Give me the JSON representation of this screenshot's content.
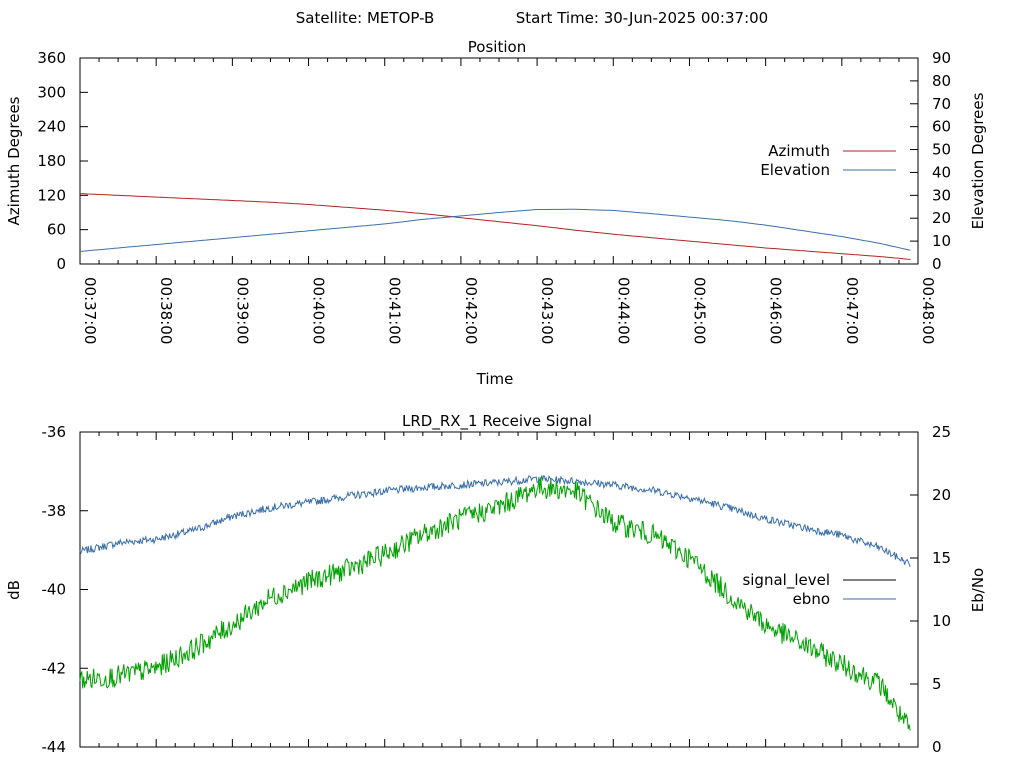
{
  "header": {
    "satellite": "Satellite: METOP-B",
    "start_time": "Start Time: 30-Jun-2025 00:37:00"
  },
  "chart_data": [
    {
      "type": "line",
      "title": "Position",
      "xlabel": "Time",
      "ylabel": "Azimuth Degrees",
      "y2label": "Elevation Degrees",
      "x_ticks": [
        "00:37:00",
        "00:38:00",
        "00:39:00",
        "00:40:00",
        "00:41:00",
        "00:42:00",
        "00:43:00",
        "00:44:00",
        "00:45:00",
        "00:46:00",
        "00:47:00",
        "00:48:00"
      ],
      "xlim_minutes": [
        0,
        11
      ],
      "ylim": [
        0,
        360
      ],
      "y_ticks": [
        "0",
        "60",
        "120",
        "180",
        "240",
        "300",
        "360"
      ],
      "y2lim": [
        0,
        90
      ],
      "y2_ticks": [
        "0",
        "10",
        "20",
        "30",
        "40",
        "50",
        "60",
        "70",
        "80",
        "90"
      ],
      "legend_position": "right",
      "series": [
        {
          "name": "Azimuth",
          "axis": "y",
          "color": "#b22222",
          "x_minutes": [
            0,
            0.5,
            1,
            1.5,
            2,
            2.5,
            3,
            3.5,
            4,
            4.5,
            5,
            5.5,
            6,
            6.5,
            7,
            7.5,
            8,
            8.5,
            9,
            9.5,
            10,
            10.5,
            10.9
          ],
          "values": [
            123,
            120,
            117,
            114,
            111,
            108,
            104,
            99,
            94,
            88,
            81,
            74,
            67,
            59,
            52,
            46,
            40,
            34,
            28,
            23,
            18,
            13,
            8
          ]
        },
        {
          "name": "Elevation",
          "axis": "y2",
          "color": "#3a6fa8",
          "x_minutes": [
            0,
            0.5,
            1,
            1.5,
            2,
            2.5,
            3,
            3.5,
            4,
            4.5,
            5,
            5.5,
            6,
            6.5,
            7,
            7.5,
            8,
            8.5,
            9,
            9.5,
            10,
            10.5,
            10.9
          ],
          "values": [
            5.5,
            7,
            8.5,
            10,
            11.5,
            13,
            14.5,
            16,
            17.5,
            19.5,
            21,
            22.5,
            23.8,
            23.9,
            23.4,
            22,
            20.5,
            19,
            17,
            14.5,
            12,
            9,
            6
          ]
        }
      ]
    },
    {
      "type": "line",
      "title": "LRD_RX_1 Receive Signal",
      "ylabel": "dB",
      "y2label": "Eb/No",
      "xlim_minutes": [
        0,
        11
      ],
      "ylim": [
        -44,
        -36
      ],
      "y_ticks": [
        "-36",
        "-38",
        "-40",
        "-42",
        "-44"
      ],
      "y2lim": [
        0,
        25
      ],
      "y2_ticks": [
        "0",
        "5",
        "10",
        "15",
        "20",
        "25"
      ],
      "legend_position": "right",
      "series": [
        {
          "name": "signal_level",
          "axis": "y",
          "color": "#00a000",
          "x_minutes": [
            0,
            0.5,
            1,
            1.5,
            2,
            2.5,
            3,
            3.5,
            4,
            4.5,
            5,
            5.5,
            6,
            6.5,
            7,
            7.5,
            8,
            8.5,
            9,
            9.5,
            10,
            10.5,
            10.9
          ],
          "values": [
            -42.3,
            -42.2,
            -42.0,
            -41.5,
            -40.9,
            -40.2,
            -39.8,
            -39.5,
            -39.1,
            -38.6,
            -38.2,
            -37.9,
            -37.4,
            -37.5,
            -38.3,
            -38.6,
            -39.2,
            -40.1,
            -40.9,
            -41.4,
            -41.9,
            -42.4,
            -43.6
          ]
        },
        {
          "name": "ebno",
          "axis": "y2",
          "color": "#3a6fa8",
          "x_minutes": [
            0,
            0.5,
            1,
            1.5,
            2,
            2.5,
            3,
            3.5,
            4,
            4.5,
            5,
            5.5,
            6,
            6.5,
            7,
            7.5,
            8,
            8.5,
            9,
            9.5,
            10,
            10.5,
            10.9
          ],
          "values": [
            15.5,
            16.2,
            16.5,
            17.2,
            18.3,
            19.0,
            19.4,
            19.9,
            20.3,
            20.6,
            20.8,
            21.0,
            21.3,
            21.1,
            20.8,
            20.4,
            19.8,
            19.0,
            18.1,
            17.4,
            16.8,
            15.8,
            14.5
          ]
        }
      ]
    }
  ]
}
